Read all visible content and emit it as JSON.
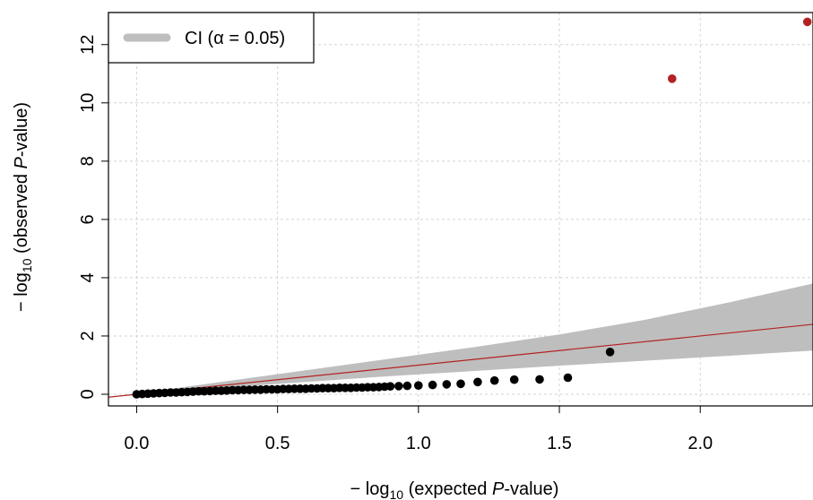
{
  "chart_data": {
    "type": "scatter",
    "title": "",
    "xlabel": {
      "prefix": "− log",
      "sub": "10",
      "pre": " (expected ",
      "italic": "P",
      "post": "-value)"
    },
    "ylabel": {
      "prefix": "− log",
      "sub": "10",
      "pre": " (observed ",
      "italic": "P",
      "post": "-value)"
    },
    "xlim": [
      -0.1,
      2.4
    ],
    "ylim": [
      -0.4,
      13.1
    ],
    "x_ticks": [
      0.0,
      0.5,
      1.0,
      1.5,
      2.0
    ],
    "x_tick_labels": [
      "0.0",
      "0.5",
      "1.0",
      "1.5",
      "2.0"
    ],
    "y_ticks": [
      0,
      2,
      4,
      6,
      8,
      10,
      12
    ],
    "y_tick_labels": [
      "0",
      "2",
      "4",
      "6",
      "8",
      "10",
      "12"
    ],
    "grid": true,
    "legend": {
      "position": "top-left",
      "label": "CI (α = 0.05)",
      "color": "#bebebe"
    },
    "reference_line": {
      "slope": 1,
      "intercept": 0,
      "color": "#b22222"
    },
    "ci_band": {
      "x": [
        -0.1,
        0.0,
        0.3,
        0.6,
        0.9,
        1.2,
        1.5,
        1.8,
        2.1,
        2.4
      ],
      "lower": [
        -0.1,
        0.0,
        0.22,
        0.42,
        0.62,
        0.8,
        0.98,
        1.15,
        1.32,
        1.5
      ],
      "upper": [
        -0.1,
        0.02,
        0.42,
        0.82,
        1.22,
        1.62,
        2.05,
        2.55,
        3.15,
        3.8
      ],
      "color": "#bebebe"
    },
    "series": [
      {
        "color": "#000000",
        "points": [
          [
            0.0,
            0.0
          ],
          [
            0.02,
            0.01
          ],
          [
            0.04,
            0.02
          ],
          [
            0.06,
            0.03
          ],
          [
            0.08,
            0.04
          ],
          [
            0.1,
            0.05
          ],
          [
            0.12,
            0.06
          ],
          [
            0.14,
            0.06
          ],
          [
            0.16,
            0.07
          ],
          [
            0.18,
            0.08
          ],
          [
            0.2,
            0.09
          ],
          [
            0.22,
            0.1
          ],
          [
            0.24,
            0.1
          ],
          [
            0.26,
            0.11
          ],
          [
            0.28,
            0.12
          ],
          [
            0.3,
            0.12
          ],
          [
            0.32,
            0.13
          ],
          [
            0.34,
            0.14
          ],
          [
            0.36,
            0.14
          ],
          [
            0.38,
            0.15
          ],
          [
            0.4,
            0.15
          ],
          [
            0.42,
            0.16
          ],
          [
            0.44,
            0.16
          ],
          [
            0.46,
            0.17
          ],
          [
            0.48,
            0.17
          ],
          [
            0.5,
            0.17
          ],
          [
            0.52,
            0.18
          ],
          [
            0.54,
            0.18
          ],
          [
            0.56,
            0.19
          ],
          [
            0.58,
            0.19
          ],
          [
            0.6,
            0.19
          ],
          [
            0.62,
            0.2
          ],
          [
            0.64,
            0.2
          ],
          [
            0.66,
            0.21
          ],
          [
            0.68,
            0.21
          ],
          [
            0.7,
            0.21
          ],
          [
            0.72,
            0.22
          ],
          [
            0.74,
            0.22
          ],
          [
            0.76,
            0.22
          ],
          [
            0.78,
            0.23
          ],
          [
            0.8,
            0.23
          ],
          [
            0.82,
            0.24
          ],
          [
            0.84,
            0.24
          ],
          [
            0.86,
            0.25
          ],
          [
            0.88,
            0.26
          ],
          [
            0.9,
            0.27
          ],
          [
            0.93,
            0.28
          ],
          [
            0.96,
            0.29
          ],
          [
            1.0,
            0.3
          ],
          [
            1.05,
            0.32
          ],
          [
            1.1,
            0.34
          ],
          [
            1.15,
            0.36
          ],
          [
            1.21,
            0.42
          ],
          [
            1.27,
            0.47
          ],
          [
            1.34,
            0.5
          ],
          [
            1.43,
            0.51
          ],
          [
            1.53,
            0.57
          ],
          [
            1.68,
            1.45
          ]
        ]
      },
      {
        "color": "#b22222",
        "points": [
          [
            1.9,
            10.83
          ],
          [
            2.38,
            12.78
          ]
        ]
      }
    ]
  }
}
